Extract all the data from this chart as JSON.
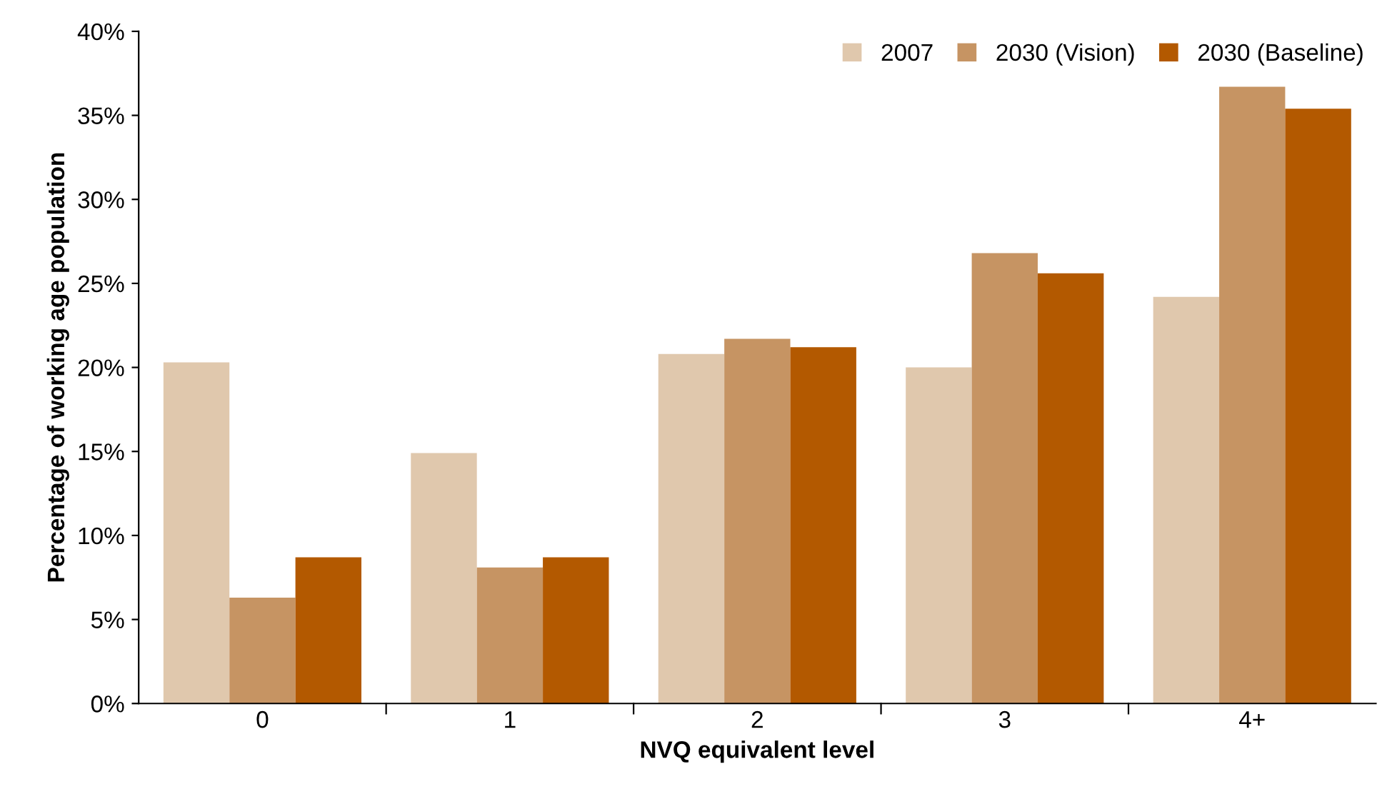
{
  "chart_data": {
    "type": "bar",
    "xlabel": "NVQ equivalent level",
    "ylabel": "Percentage of working age population",
    "categories": [
      "0",
      "1",
      "2",
      "3",
      "4+"
    ],
    "series": [
      {
        "name": "2007",
        "color": "#e0c8ad",
        "values": [
          20.3,
          14.9,
          20.8,
          20.0,
          24.2
        ]
      },
      {
        "name": "2030 (Vision)",
        "color": "#c69463",
        "values": [
          6.3,
          8.1,
          21.7,
          26.8,
          36.7
        ]
      },
      {
        "name": "2030 (Baseline)",
        "color": "#b35900",
        "values": [
          8.7,
          8.7,
          21.2,
          25.6,
          35.4
        ]
      }
    ],
    "ylim": [
      0,
      40
    ],
    "yticks": [
      {
        "value": 0,
        "label": "0%"
      },
      {
        "value": 5,
        "label": "5%"
      },
      {
        "value": 10,
        "label": "10%"
      },
      {
        "value": 15,
        "label": "15%"
      },
      {
        "value": 20,
        "label": "20%"
      },
      {
        "value": 25,
        "label": "25%"
      },
      {
        "value": 30,
        "label": "30%"
      },
      {
        "value": 35,
        "label": "35%"
      },
      {
        "value": 40,
        "label": "40%"
      }
    ],
    "grid": false,
    "legend": "top right"
  }
}
